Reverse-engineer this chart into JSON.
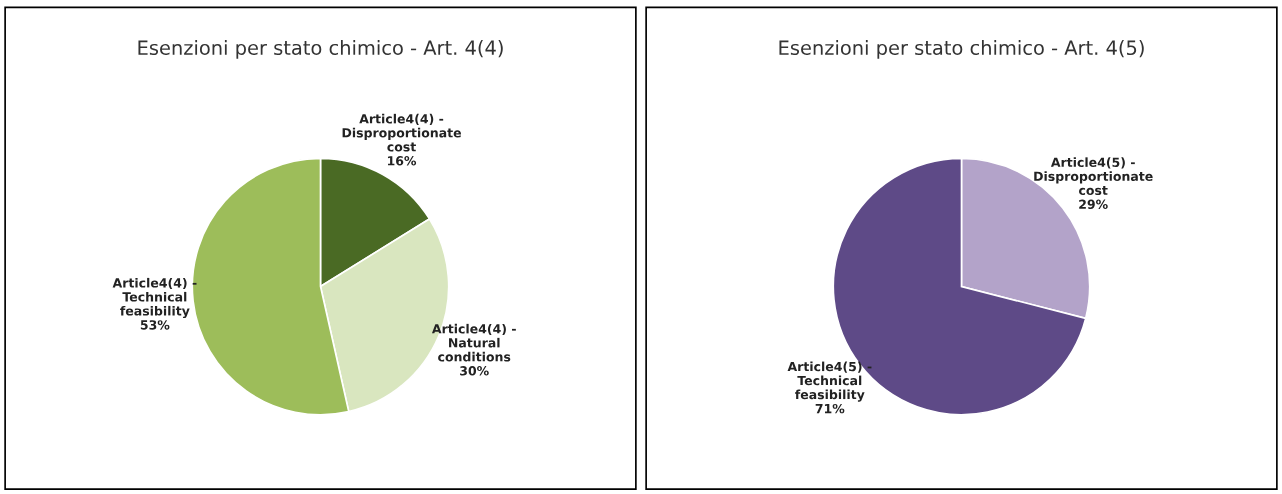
{
  "chart_data": [
    {
      "type": "pie",
      "title": "Esenzioni per stato chimico - Art. 4(4)",
      "categories": [
        "Article4(4) -\nDisproportionate\ncost",
        "Article4(4) -\nNatural\nconditions",
        "Article4(4) -\nTechnical\nfeasibility"
      ],
      "values": [
        16,
        30,
        53
      ],
      "colors": [
        "#4a6a24",
        "#d9e6bf",
        "#9dbd5a"
      ],
      "value_labels": [
        "16%",
        "30%",
        "53%"
      ]
    },
    {
      "type": "pie",
      "title": "Esenzioni per stato chimico - Art. 4(5)",
      "categories": [
        "Article4(5) -\nDisproportionate\ncost",
        "Article4(5) -\nTechnical\nfeasibility"
      ],
      "values": [
        29,
        71
      ],
      "colors": [
        "#b3a3c9",
        "#5e4a87"
      ],
      "value_labels": [
        "29%",
        "71%"
      ]
    }
  ]
}
